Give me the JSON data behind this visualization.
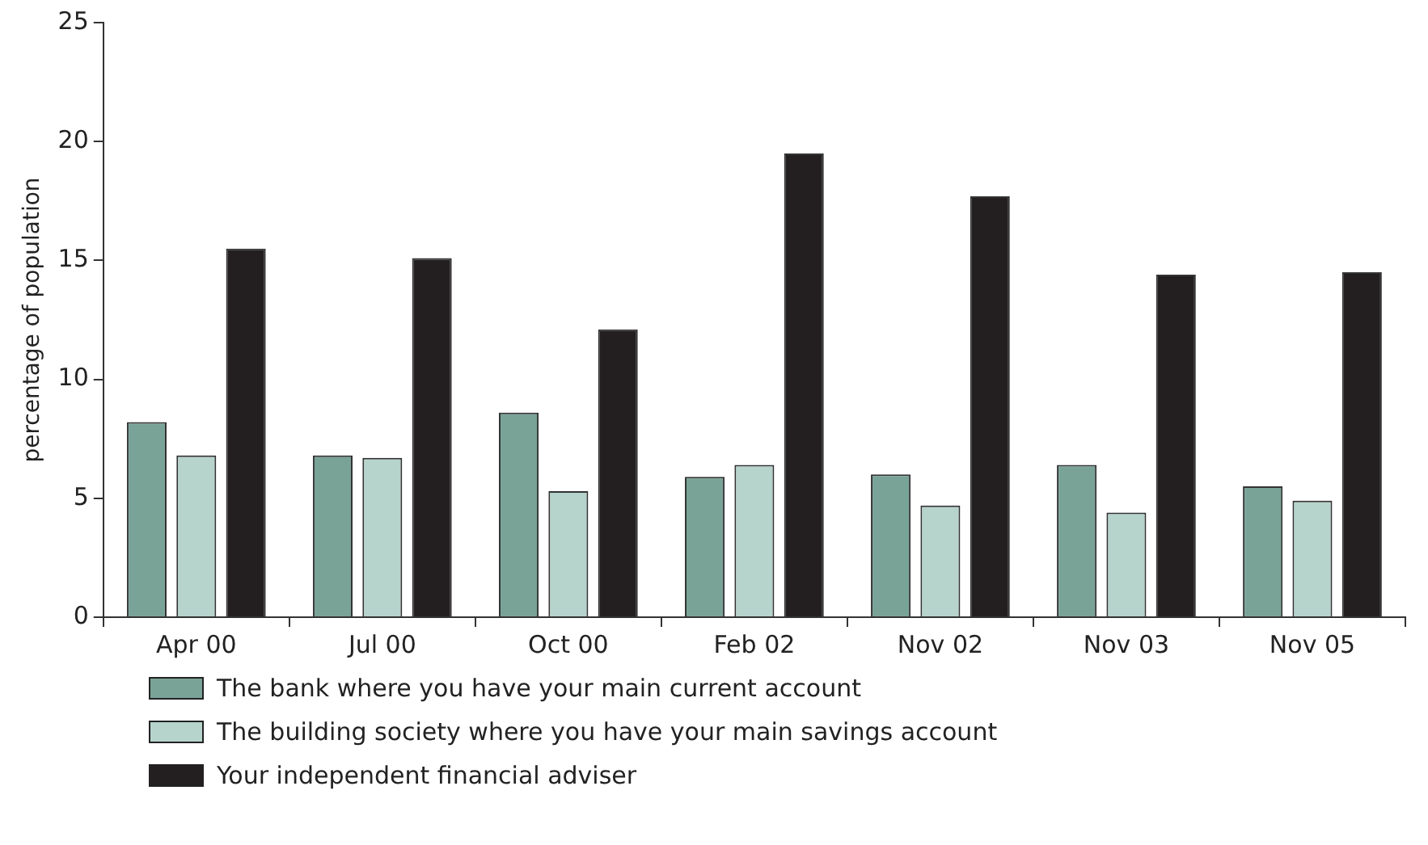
{
  "chart_data": {
    "type": "bar",
    "ylabel": "percentage of population",
    "categories": [
      "Apr 00",
      "Jul 00",
      "Oct 00",
      "Feb 02",
      "Nov 02",
      "Nov 03",
      "Nov 05"
    ],
    "series": [
      {
        "name": "The bank where you have your main current account",
        "color": "#7aa398",
        "values": [
          8.2,
          6.8,
          8.6,
          5.9,
          6.0,
          6.4,
          5.5
        ]
      },
      {
        "name": "The building society where you have your main savings account",
        "color": "#b6d3cc",
        "values": [
          6.8,
          6.7,
          5.3,
          6.4,
          4.7,
          4.4,
          4.9
        ]
      },
      {
        "name": "Your independent financial adviser",
        "color": "#231f20",
        "values": [
          15.5,
          15.1,
          12.1,
          19.5,
          17.7,
          14.4,
          14.5
        ]
      }
    ],
    "ylim": [
      0,
      25
    ],
    "yticks": [
      0,
      5,
      10,
      15,
      20,
      25
    ],
    "grid": false,
    "legend": "bottom"
  }
}
